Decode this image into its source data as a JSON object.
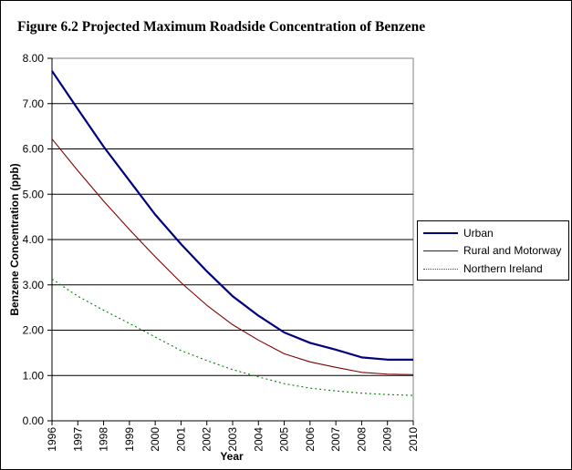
{
  "title": "Figure 6.2 Projected Maximum Roadside Concentration of Benzene",
  "chart_data": {
    "type": "line",
    "title": "Figure 6.2 Projected Maximum Roadside Concentration of Benzene",
    "xlabel": "Year",
    "ylabel": "Benzene Concentration (ppb)",
    "x": [
      "1996",
      "1997",
      "1998",
      "1999",
      "2000",
      "2001",
      "2002",
      "2003",
      "2004",
      "2005",
      "2006",
      "2007",
      "2008",
      "2009",
      "2010"
    ],
    "ylim": [
      0,
      8
    ],
    "yticks": [
      "0.00",
      "1.00",
      "2.00",
      "3.00",
      "4.00",
      "5.00",
      "6.00",
      "7.00",
      "8.00"
    ],
    "grid": true,
    "legend_position": "right",
    "series": [
      {
        "name": "Urban",
        "color": "#000080",
        "style": "solid-thick",
        "values": [
          7.72,
          6.88,
          6.05,
          5.3,
          4.55,
          3.9,
          3.3,
          2.75,
          2.32,
          1.95,
          1.72,
          1.57,
          1.4,
          1.35,
          1.35
        ]
      },
      {
        "name": "Rural and Motorway",
        "color": "#800000",
        "style": "solid",
        "values": [
          6.22,
          5.52,
          4.85,
          4.22,
          3.62,
          3.05,
          2.55,
          2.12,
          1.78,
          1.48,
          1.3,
          1.18,
          1.07,
          1.03,
          1.02
        ]
      },
      {
        "name": "Northern Ireland",
        "color": "#008000",
        "style": "dotted",
        "values": [
          3.13,
          2.75,
          2.44,
          2.15,
          1.85,
          1.55,
          1.33,
          1.13,
          0.97,
          0.82,
          0.72,
          0.66,
          0.61,
          0.58,
          0.56
        ]
      }
    ]
  }
}
